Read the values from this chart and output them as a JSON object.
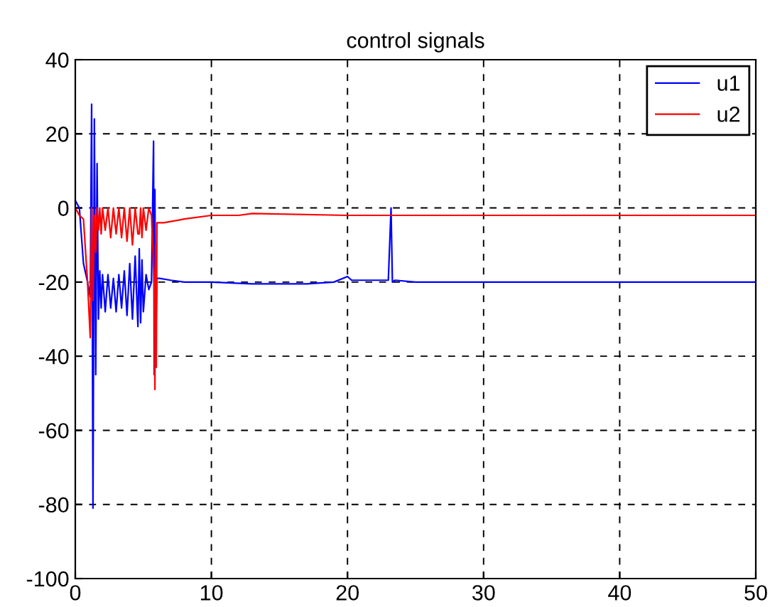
{
  "chart_data": {
    "type": "line",
    "title": "control signals",
    "xlim": [
      0,
      50
    ],
    "ylim": [
      -100,
      40
    ],
    "xticks": [
      0,
      10,
      20,
      30,
      40,
      50
    ],
    "yticks": [
      -100,
      -80,
      -60,
      -40,
      -20,
      0,
      20,
      40
    ],
    "grid": true,
    "legend": "top right",
    "line_style": "solid",
    "marker": "none",
    "series": [
      {
        "name": "u1",
        "color": "#0000ff",
        "x": [
          0,
          0.3,
          0.6,
          0.9,
          1.1,
          1.2,
          1.3,
          1.4,
          1.5,
          1.6,
          1.7,
          1.8,
          1.9,
          2.0,
          2.2,
          2.4,
          2.6,
          2.8,
          3.0,
          3.2,
          3.4,
          3.6,
          3.8,
          4.0,
          4.2,
          4.4,
          4.6,
          4.7,
          4.8,
          4.9,
          5.0,
          5.2,
          5.4,
          5.6,
          5.75,
          5.8,
          5.85,
          5.9,
          6.0,
          6.2,
          7,
          8,
          10,
          13,
          17,
          19,
          20,
          20.3,
          23,
          23.2,
          23.3,
          23.5,
          25,
          30,
          40,
          50
        ],
        "values": [
          2,
          0,
          -15,
          -20,
          -24,
          28,
          -81,
          24,
          -45,
          12,
          -30,
          -17,
          -27,
          -18,
          -28,
          -18,
          -27,
          -19,
          -28,
          -18,
          -27,
          -17,
          -29,
          -15,
          -30,
          -13,
          -32,
          -11,
          -31,
          -14,
          -28,
          -18,
          -22,
          -20,
          18,
          -45,
          5,
          -40,
          -19,
          -19,
          -19.5,
          -20,
          -20,
          -20.5,
          -20.5,
          -20,
          -18.5,
          -19.5,
          -19.5,
          0,
          -20,
          -19.5,
          -20,
          -20,
          -20,
          -20
        ]
      },
      {
        "name": "u2",
        "color": "#ff0000",
        "x": [
          0,
          0.3,
          0.6,
          0.9,
          1.1,
          1.2,
          1.3,
          1.4,
          1.5,
          1.6,
          1.7,
          1.8,
          1.9,
          2.0,
          2.2,
          2.4,
          2.6,
          2.8,
          3.0,
          3.2,
          3.4,
          3.6,
          3.8,
          4.0,
          4.2,
          4.4,
          4.6,
          4.7,
          4.8,
          4.9,
          5.0,
          5.2,
          5.4,
          5.6,
          5.8,
          5.85,
          5.9,
          5.95,
          6.0,
          6.5,
          8,
          10,
          12,
          13,
          20,
          30,
          40,
          50
        ],
        "values": [
          0,
          -2,
          -3,
          -20,
          -35,
          0,
          -25,
          -2,
          -12,
          0,
          -6,
          0,
          -7,
          0,
          -6,
          0,
          -8,
          0,
          -7,
          0,
          -8,
          0,
          -9,
          0,
          -10,
          0,
          -7,
          -7,
          0,
          -8,
          0,
          -6,
          0,
          -2,
          -20,
          -49,
          -10,
          -43,
          -4,
          -4,
          -3,
          -2,
          -2,
          -1.5,
          -2,
          -2,
          -2,
          -2
        ]
      }
    ]
  }
}
